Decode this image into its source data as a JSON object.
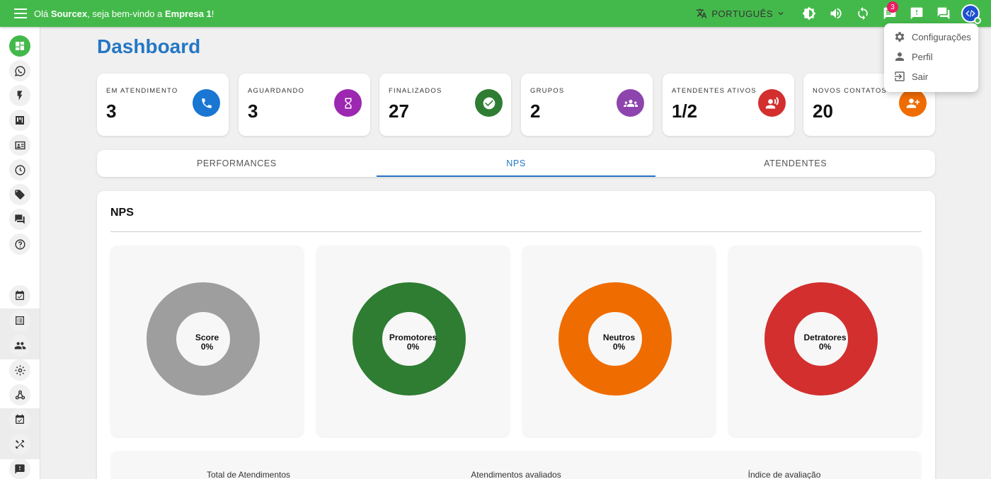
{
  "header": {
    "greeting_prefix": "Olá ",
    "user": "Sourcex",
    "greeting_middle": ", seja bem-vindo a ",
    "company": "Empresa 1",
    "greeting_suffix": "!",
    "language": "PORTUGUÊS",
    "notifications_count": "3",
    "color": "#44b94b"
  },
  "user_menu": {
    "items": [
      {
        "label": "Configurações",
        "icon": "gear-icon"
      },
      {
        "label": "Perfil",
        "icon": "person-icon"
      },
      {
        "label": "Sair",
        "icon": "logout-icon"
      }
    ]
  },
  "page": {
    "title": "Dashboard"
  },
  "cards": [
    {
      "label": "EM ATENDIMENTO",
      "value": "3",
      "icon": "phone-icon",
      "color": "#1976d2"
    },
    {
      "label": "AGUARDANDO",
      "value": "3",
      "icon": "hourglass-icon",
      "color": "#9c27b0"
    },
    {
      "label": "FINALIZADOS",
      "value": "27",
      "icon": "check-circle-icon",
      "color": "#2e7d32"
    },
    {
      "label": "GRUPOS",
      "value": "2",
      "icon": "groups-icon",
      "color": "#8e44ad"
    },
    {
      "label": "ATENDENTES ATIVOS",
      "value": "1/2",
      "icon": "record-voice-icon",
      "color": "#d32f2f"
    },
    {
      "label": "NOVOS CONTATOS",
      "value": "20",
      "icon": "person-add-icon",
      "color": "#ef6c00"
    }
  ],
  "tabs": [
    {
      "label": "PERFORMANCES"
    },
    {
      "label": "NPS",
      "active": true
    },
    {
      "label": "ATENDENTES"
    }
  ],
  "nps": {
    "title": "NPS",
    "donuts": [
      {
        "label": "Score",
        "value": "0%",
        "color": "#9e9e9e"
      },
      {
        "label": "Promotores",
        "value": "0%",
        "color": "#2e7d32"
      },
      {
        "label": "Neutros",
        "value": "0%",
        "color": "#ef6c00"
      },
      {
        "label": "Detratores",
        "value": "0%",
        "color": "#d32f2f"
      }
    ],
    "summary": [
      "Total de Atendimentos",
      "Atendimentos avaliados",
      "Índice de avaliação"
    ]
  }
}
